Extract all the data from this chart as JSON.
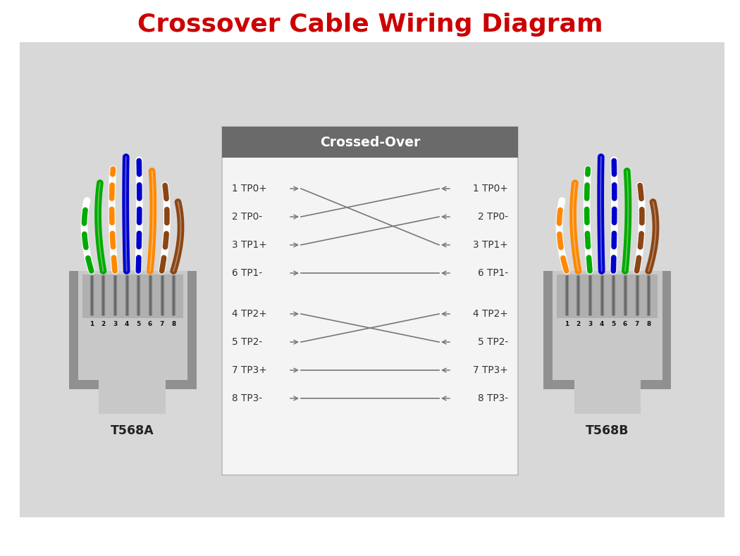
{
  "title": "Crossover Cable Wiring Diagram",
  "title_color": "#cc0000",
  "title_fontsize": 26,
  "bg_color": "#d8d8d8",
  "white_bg": "#ffffff",
  "crossed_over_label": "Crossed-Over",
  "line_color": "#777777",
  "connector_label_A": "T568A",
  "connector_label_B": "T568B",
  "left_rows": [
    "1 TP0+",
    "2 TP0-",
    "3 TP1+",
    "6 TP1-",
    "4 TP2+",
    "5 TP2-",
    "7 TP3+",
    "8 TP3-"
  ],
  "right_rows": [
    "1 TP0+",
    "2 TP0-",
    "3 TP1+",
    "6 TP1-",
    "4 TP2+",
    "5 TP2-",
    "7 TP3+",
    "8 TP3-"
  ],
  "t568a_wire_colors": [
    "#00aa00",
    "#00aa00",
    "#ff8800",
    "#0000cc",
    "#0000cc",
    "#ff8800",
    "#8B4513",
    "#8B4513"
  ],
  "t568a_is_stripe": [
    true,
    false,
    true,
    false,
    true,
    false,
    true,
    false
  ],
  "t568b_wire_colors": [
    "#ff8800",
    "#ff8800",
    "#00aa00",
    "#0000cc",
    "#0000cc",
    "#00aa00",
    "#8B4513",
    "#8B4513"
  ],
  "t568b_is_stripe": [
    true,
    false,
    true,
    false,
    true,
    false,
    true,
    false
  ],
  "cross_g1_targets": [
    2,
    0,
    1,
    3
  ],
  "cross_g2_targets": [
    1,
    0,
    2,
    3
  ]
}
